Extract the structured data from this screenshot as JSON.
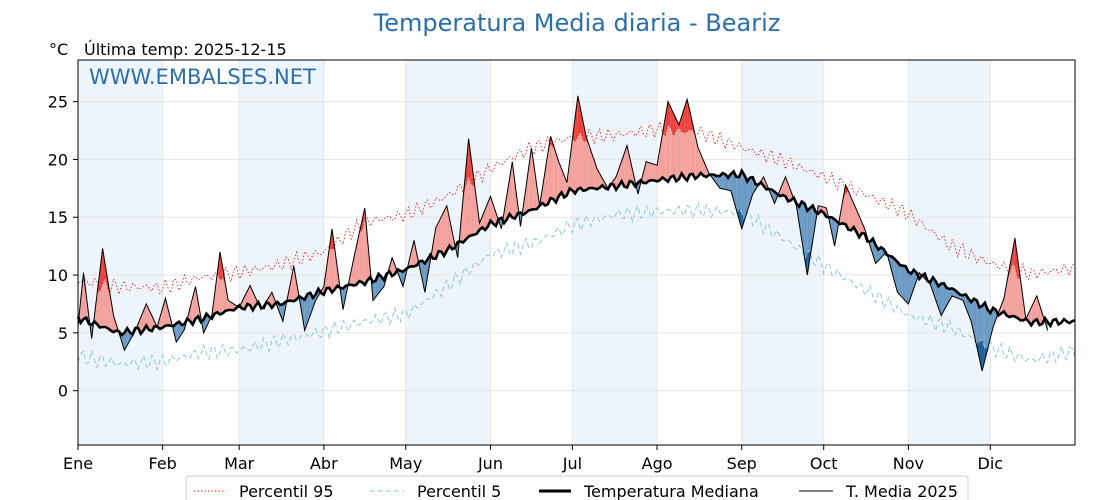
{
  "header": {
    "title": "Temperatura Media diaria - Beariz",
    "unit": "°C",
    "last_temp": "Última temp: 2025-12-15",
    "watermark": "WWW.EMBALSES.NET"
  },
  "chart_data": {
    "type": "line",
    "title": "Temperatura Media diaria - Beariz",
    "ylabel": "°C",
    "ylim": [
      -4.7,
      28.6
    ],
    "xlim": [
      1,
      366
    ],
    "yticks": [
      0,
      5,
      10,
      15,
      20,
      25
    ],
    "month_ticks": [
      {
        "label": "Ene",
        "day": 1
      },
      {
        "label": "Feb",
        "day": 32
      },
      {
        "label": "Mar",
        "day": 60
      },
      {
        "label": "Abr",
        "day": 91
      },
      {
        "label": "May",
        "day": 121
      },
      {
        "label": "Jun",
        "day": 152
      },
      {
        "label": "Jul",
        "day": 182
      },
      {
        "label": "Ago",
        "day": 213
      },
      {
        "label": "Sep",
        "day": 244
      },
      {
        "label": "Oct",
        "day": 274
      },
      {
        "label": "Nov",
        "day": 305
      },
      {
        "label": "Dic",
        "day": 335
      }
    ],
    "grid": true,
    "legend_position": "bottom-center",
    "series": [
      {
        "name": "Percentil 95",
        "color": "#e8231e",
        "style": "dotted",
        "points": [
          [
            1,
            9.5
          ],
          [
            16,
            9.0
          ],
          [
            32,
            8.9
          ],
          [
            46,
            9.8
          ],
          [
            60,
            10.2
          ],
          [
            75,
            10.9
          ],
          [
            91,
            12.0
          ],
          [
            106,
            14.6
          ],
          [
            121,
            15.2
          ],
          [
            136,
            16.8
          ],
          [
            152,
            19.2
          ],
          [
            167,
            21.0
          ],
          [
            182,
            21.9
          ],
          [
            198,
            22.1
          ],
          [
            213,
            22.6
          ],
          [
            228,
            22.4
          ],
          [
            244,
            21.0
          ],
          [
            259,
            19.9
          ],
          [
            274,
            18.5
          ],
          [
            290,
            16.9
          ],
          [
            305,
            15.3
          ],
          [
            320,
            12.6
          ],
          [
            335,
            11.0
          ],
          [
            350,
            10.1
          ],
          [
            366,
            10.6
          ]
        ]
      },
      {
        "name": "Percentil 5",
        "color": "#8cc8de",
        "style": "dashed",
        "points": [
          [
            1,
            3.0
          ],
          [
            16,
            2.3
          ],
          [
            32,
            2.5
          ],
          [
            46,
            3.3
          ],
          [
            60,
            3.5
          ],
          [
            75,
            4.3
          ],
          [
            91,
            5.1
          ],
          [
            106,
            6.0
          ],
          [
            121,
            6.6
          ],
          [
            136,
            9.0
          ],
          [
            152,
            11.8
          ],
          [
            167,
            12.7
          ],
          [
            182,
            14.3
          ],
          [
            198,
            15.2
          ],
          [
            213,
            15.5
          ],
          [
            228,
            15.6
          ],
          [
            244,
            15.4
          ],
          [
            259,
            13.2
          ],
          [
            274,
            10.8
          ],
          [
            290,
            8.6
          ],
          [
            305,
            6.5
          ],
          [
            320,
            5.5
          ],
          [
            335,
            3.7
          ],
          [
            350,
            2.6
          ],
          [
            366,
            3.4
          ]
        ]
      },
      {
        "name": "Temperatura Mediana",
        "color": "#000000",
        "style": "solid-thick",
        "points": [
          [
            1,
            6.3
          ],
          [
            16,
            5.0
          ],
          [
            32,
            5.5
          ],
          [
            46,
            6.2
          ],
          [
            60,
            7.2
          ],
          [
            75,
            7.5
          ],
          [
            91,
            8.6
          ],
          [
            106,
            9.4
          ],
          [
            121,
            10.5
          ],
          [
            136,
            12.1
          ],
          [
            152,
            14.4
          ],
          [
            167,
            15.6
          ],
          [
            182,
            17.3
          ],
          [
            198,
            17.7
          ],
          [
            213,
            18.2
          ],
          [
            228,
            18.6
          ],
          [
            244,
            18.7
          ],
          [
            259,
            16.8
          ],
          [
            274,
            15.3
          ],
          [
            290,
            13.2
          ],
          [
            305,
            10.4
          ],
          [
            320,
            8.9
          ],
          [
            335,
            7.0
          ],
          [
            350,
            5.9
          ],
          [
            366,
            6.0
          ]
        ]
      },
      {
        "name": "T. Media 2025",
        "color": "#000000",
        "style": "solid",
        "points": [
          [
            1,
            5.5
          ],
          [
            3,
            10.2
          ],
          [
            6,
            4.5
          ],
          [
            10,
            12.3
          ],
          [
            14,
            6.5
          ],
          [
            18,
            3.5
          ],
          [
            22,
            5.2
          ],
          [
            26,
            7.5
          ],
          [
            30,
            5.5
          ],
          [
            33,
            8.0
          ],
          [
            37,
            4.2
          ],
          [
            40,
            5.3
          ],
          [
            44,
            9.0
          ],
          [
            47,
            5.0
          ],
          [
            50,
            6.5
          ],
          [
            53,
            12.0
          ],
          [
            56,
            7.8
          ],
          [
            60,
            7.2
          ],
          [
            64,
            9.1
          ],
          [
            68,
            7.0
          ],
          [
            72,
            8.5
          ],
          [
            76,
            6.0
          ],
          [
            80,
            10.8
          ],
          [
            84,
            5.2
          ],
          [
            88,
            7.8
          ],
          [
            91,
            9.0
          ],
          [
            94,
            14.0
          ],
          [
            98,
            7.0
          ],
          [
            102,
            11.5
          ],
          [
            106,
            15.8
          ],
          [
            109,
            7.8
          ],
          [
            113,
            9.0
          ],
          [
            116,
            11.5
          ],
          [
            120,
            9.0
          ],
          [
            124,
            13.0
          ],
          [
            128,
            8.5
          ],
          [
            132,
            14.1
          ],
          [
            136,
            16.0
          ],
          [
            140,
            11.5
          ],
          [
            144,
            21.8
          ],
          [
            148,
            14.5
          ],
          [
            152,
            16.8
          ],
          [
            156,
            14.0
          ],
          [
            160,
            19.8
          ],
          [
            163,
            14.2
          ],
          [
            167,
            21.0
          ],
          [
            170,
            16.0
          ],
          [
            174,
            22.0
          ],
          [
            177,
            19.8
          ],
          [
            180,
            18.0
          ],
          [
            184,
            25.5
          ],
          [
            187,
            22.0
          ],
          [
            191,
            19.2
          ],
          [
            195,
            17.5
          ],
          [
            198,
            18.5
          ],
          [
            202,
            21.2
          ],
          [
            206,
            17.0
          ],
          [
            209,
            19.8
          ],
          [
            213,
            19.5
          ],
          [
            217,
            25.0
          ],
          [
            221,
            23.0
          ],
          [
            224,
            25.2
          ],
          [
            228,
            21.0
          ],
          [
            232,
            18.8
          ],
          [
            236,
            17.5
          ],
          [
            240,
            17.3
          ],
          [
            244,
            14.0
          ],
          [
            248,
            17.0
          ],
          [
            252,
            18.5
          ],
          [
            256,
            16.2
          ],
          [
            260,
            18.5
          ],
          [
            264,
            16.0
          ],
          [
            268,
            10.0
          ],
          [
            272,
            16.0
          ],
          [
            275,
            15.8
          ],
          [
            278,
            12.5
          ],
          [
            282,
            17.8
          ],
          [
            285,
            16.2
          ],
          [
            289,
            14.0
          ],
          [
            293,
            11.0
          ],
          [
            297,
            12.0
          ],
          [
            301,
            8.5
          ],
          [
            305,
            7.5
          ],
          [
            309,
            10.2
          ],
          [
            313,
            9.2
          ],
          [
            317,
            6.5
          ],
          [
            321,
            8.2
          ],
          [
            325,
            7.8
          ],
          [
            328,
            6.0
          ],
          [
            332,
            1.7
          ],
          [
            336,
            5.5
          ],
          [
            340,
            8.0
          ],
          [
            344,
            13.2
          ],
          [
            348,
            6.2
          ],
          [
            352,
            8.2
          ],
          [
            356,
            5.2
          ]
        ]
      }
    ]
  },
  "legend": [
    {
      "label": "Percentil 95",
      "color": "#e8231e",
      "style": "dotted"
    },
    {
      "label": "Percentil 5",
      "color": "#8cc8de",
      "style": "dashed"
    },
    {
      "label": "Temperatura Mediana",
      "color": "#000000",
      "style": "solid-thick"
    },
    {
      "label": "T. Media 2025",
      "color": "#000000",
      "style": "solid"
    }
  ],
  "colors": {
    "above_median": "#f4a09c",
    "above_p95": "#e8231e",
    "below_median": "#6a99c3",
    "below_p5": "#1f5f97",
    "month_band": "#eef4fb"
  }
}
